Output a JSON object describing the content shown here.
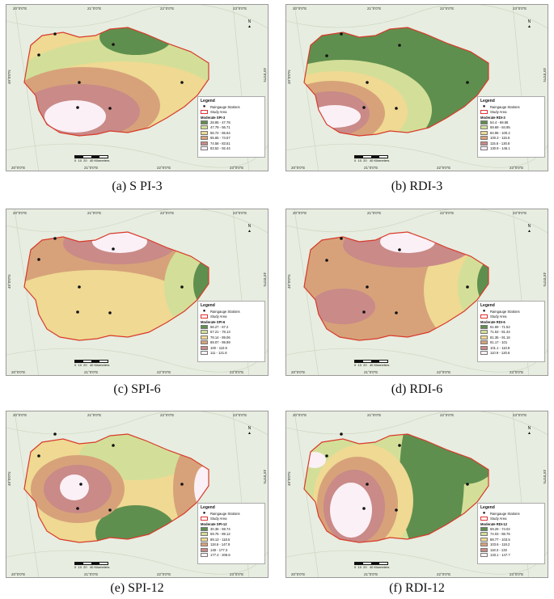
{
  "axes": {
    "top_ticks": [
      "20°0'0\"E",
      "21°0'0\"E",
      "22°0'0\"E",
      "23°0'0\"E"
    ],
    "bottom_ticks": [
      "20°0'0\"E",
      "21°0'0\"E",
      "22°0'0\"E",
      "23°0'0\"E"
    ],
    "left_tick": "49°0'0\"N",
    "right_tick": "49°0'0\"N"
  },
  "legend_common": {
    "title": "Legend",
    "stations": "Raingauge Stations",
    "study_area": "Study Area"
  },
  "scale": {
    "labels": [
      "0",
      "10",
      "20",
      "40 Kilometers"
    ]
  },
  "north_label": "N",
  "panels": [
    {
      "caption": "(a) S PI-3",
      "legend_subtitle": "Moderate SPI-3",
      "classes": [
        "28.85 - 47.78",
        "47.79 - 56.71",
        "56.72 - 65.64",
        "65.65 - 74.57",
        "74.58 - 83.51",
        "83.52 - 92.44"
      ]
    },
    {
      "caption": "(b) RDI-3",
      "legend_subtitle": "Moderate RDI-3",
      "classes": [
        "54.4 - 69.68",
        "69.69 - 84.95",
        "84.96 - 100.2",
        "100.3 - 115.5",
        "115.6 - 130.8",
        "130.9 - 146.1"
      ]
    },
    {
      "caption": "(c) SPI-6",
      "legend_subtitle": "Moderate SPI-6",
      "classes": [
        "56.27 - 67.2",
        "67.21 - 78.13",
        "78.14 - 89.06",
        "89.07 - 99.99",
        "100 - 110.9",
        "111 - 121.8"
      ]
    },
    {
      "caption": "(d) RDI-6",
      "legend_subtitle": "Moderate RDI-6",
      "classes": [
        "61.69 - 71.52",
        "71.53 - 81.34",
        "81.35 - 91.16",
        "91.17 - 101",
        "101.1 - 110.8",
        "110.9 - 120.6"
      ]
    },
    {
      "caption": "(e) SPI-12",
      "legend_subtitle": "Moderate SPI-12",
      "classes": [
        "30.36 - 59.74",
        "59.75 - 89.12",
        "89.13 - 118.5",
        "118.6 - 147.9",
        "148 - 177.3",
        "177.4 - 206.6"
      ]
    },
    {
      "caption": "(f) RDI-12",
      "legend_subtitle": "Moderate RDI-12",
      "classes": [
        "59.29 - 74.02",
        "74.03 - 88.76",
        "88.77 - 103.5",
        "103.6 - 118.2",
        "118.3 - 133",
        "133.1 - 147.7"
      ]
    }
  ],
  "colors": {
    "class_ramp": [
      "#5f8f4e",
      "#d3df98",
      "#efd993",
      "#d7a27a",
      "#c98a88",
      "#fbf0f6"
    ],
    "boundary": "#d83a2a",
    "basemap": "#e7ede0"
  }
}
